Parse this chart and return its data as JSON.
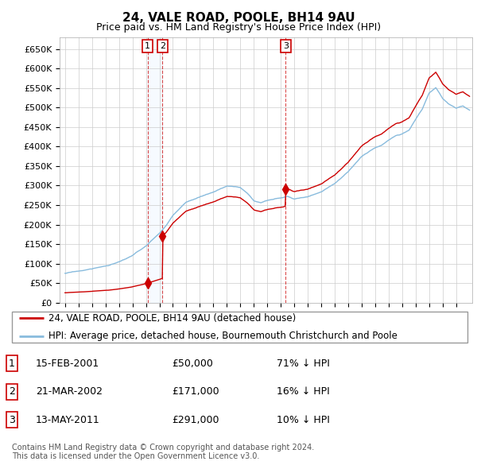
{
  "title": "24, VALE ROAD, POOLE, BH14 9AU",
  "subtitle": "Price paid vs. HM Land Registry's House Price Index (HPI)",
  "ylabel_ticks": [
    "£0",
    "£50K",
    "£100K",
    "£150K",
    "£200K",
    "£250K",
    "£300K",
    "£350K",
    "£400K",
    "£450K",
    "£500K",
    "£550K",
    "£600K",
    "£650K"
  ],
  "ytick_values": [
    0,
    50000,
    100000,
    150000,
    200000,
    250000,
    300000,
    350000,
    400000,
    450000,
    500000,
    550000,
    600000,
    650000
  ],
  "ylim": [
    0,
    680000
  ],
  "xlim": [
    1994.6,
    2025.2
  ],
  "sale_dates_num": [
    2001.12,
    2002.23,
    2011.37
  ],
  "sale_prices": [
    50000,
    171000,
    291000
  ],
  "sale_labels": [
    "1",
    "2",
    "3"
  ],
  "legend_red": "24, VALE ROAD, POOLE, BH14 9AU (detached house)",
  "legend_blue": "HPI: Average price, detached house, Bournemouth Christchurch and Poole",
  "table_data": [
    [
      "1",
      "15-FEB-2001",
      "£50,000",
      "71% ↓ HPI"
    ],
    [
      "2",
      "21-MAR-2002",
      "£171,000",
      "16% ↓ HPI"
    ],
    [
      "3",
      "13-MAY-2011",
      "£291,000",
      "10% ↓ HPI"
    ]
  ],
  "footer": "Contains HM Land Registry data © Crown copyright and database right 2024.\nThis data is licensed under the Open Government Licence v3.0.",
  "red_color": "#cc0000",
  "blue_color": "#88bbdd",
  "shade_color": "#ddeeff",
  "grid_color": "#cccccc",
  "background_color": "#ffffff",
  "hpi_control_x": [
    1995,
    1996,
    1997,
    1998,
    1999,
    2000,
    2001,
    2001.5,
    2002,
    2002.5,
    2003,
    2004,
    2005,
    2006,
    2007,
    2008,
    2008.5,
    2009,
    2009.5,
    2010,
    2011,
    2011.5,
    2012,
    2013,
    2014,
    2015,
    2016,
    2016.5,
    2017,
    2018,
    2018.5,
    2019,
    2019.5,
    2020,
    2020.5,
    2021,
    2021.5,
    2022,
    2022.5,
    2023,
    2023.5,
    2024,
    2024.5,
    2025
  ],
  "hpi_control_y": [
    75000,
    80000,
    86000,
    93000,
    103000,
    118000,
    142000,
    158000,
    175000,
    195000,
    220000,
    255000,
    268000,
    280000,
    295000,
    292000,
    278000,
    258000,
    255000,
    262000,
    268000,
    272000,
    265000,
    272000,
    285000,
    305000,
    335000,
    355000,
    375000,
    395000,
    402000,
    415000,
    425000,
    430000,
    440000,
    468000,
    495000,
    535000,
    548000,
    520000,
    505000,
    495000,
    500000,
    490000
  ]
}
